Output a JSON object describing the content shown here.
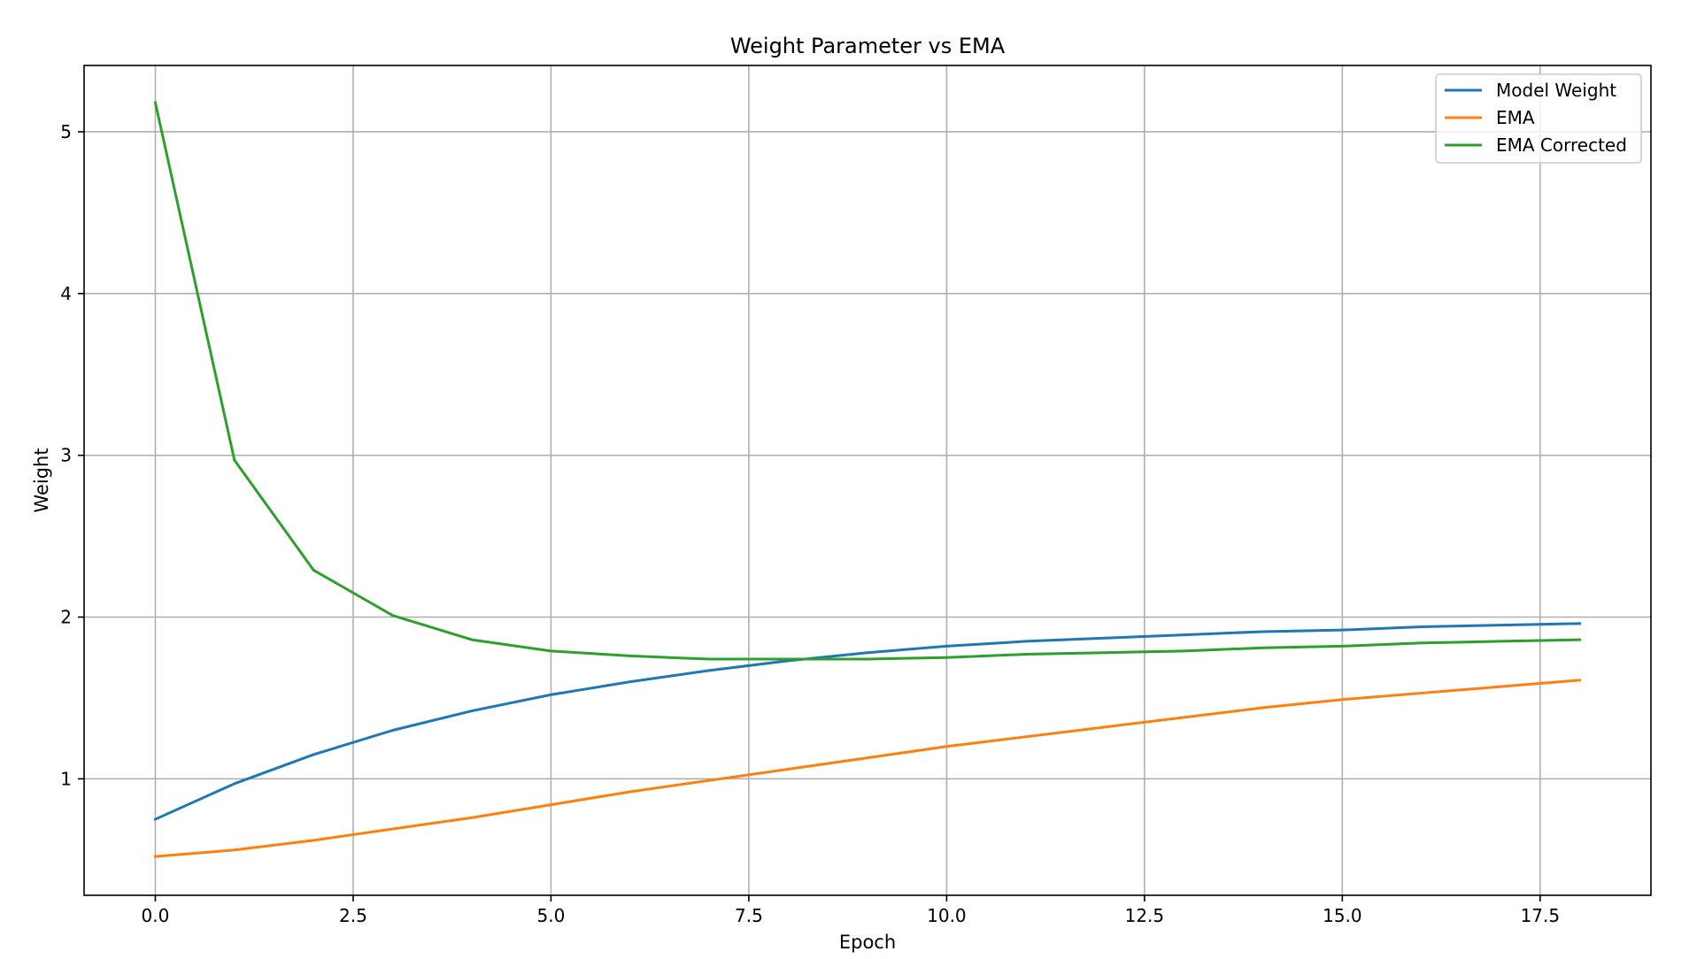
{
  "chart_data": {
    "type": "line",
    "title": "Weight Parameter vs EMA",
    "xlabel": "Epoch",
    "ylabel": "Weight",
    "xlim": [
      -0.9,
      18.9
    ],
    "ylim": [
      0.28,
      5.41
    ],
    "x_ticks": [
      0.0,
      2.5,
      5.0,
      7.5,
      10.0,
      12.5,
      15.0,
      17.5
    ],
    "x_tick_labels": [
      "0.0",
      "2.5",
      "5.0",
      "7.5",
      "10.0",
      "12.5",
      "15.0",
      "17.5"
    ],
    "y_ticks": [
      1,
      2,
      3,
      4,
      5
    ],
    "y_tick_labels": [
      "1",
      "2",
      "3",
      "4",
      "5"
    ],
    "grid": true,
    "legend_position": "top-right",
    "x": [
      0,
      1,
      2,
      3,
      4,
      5,
      6,
      7,
      8,
      9,
      10,
      11,
      12,
      13,
      14,
      15,
      16,
      17,
      18
    ],
    "series": [
      {
        "name": "Model Weight",
        "color": "#1f77b4",
        "values": [
          0.75,
          0.97,
          1.15,
          1.3,
          1.42,
          1.52,
          1.6,
          1.67,
          1.73,
          1.78,
          1.82,
          1.85,
          1.87,
          1.89,
          1.91,
          1.92,
          1.94,
          1.95,
          1.96
        ]
      },
      {
        "name": "EMA",
        "color": "#ff7f0e",
        "values": [
          0.52,
          0.56,
          0.62,
          0.69,
          0.76,
          0.84,
          0.92,
          0.99,
          1.06,
          1.13,
          1.2,
          1.26,
          1.32,
          1.38,
          1.44,
          1.49,
          1.53,
          1.57,
          1.61
        ]
      },
      {
        "name": "EMA Corrected",
        "color": "#2ca02c",
        "values": [
          5.18,
          2.97,
          2.29,
          2.01,
          1.86,
          1.79,
          1.76,
          1.74,
          1.74,
          1.74,
          1.75,
          1.77,
          1.78,
          1.79,
          1.81,
          1.82,
          1.84,
          1.85,
          1.86
        ]
      }
    ]
  }
}
